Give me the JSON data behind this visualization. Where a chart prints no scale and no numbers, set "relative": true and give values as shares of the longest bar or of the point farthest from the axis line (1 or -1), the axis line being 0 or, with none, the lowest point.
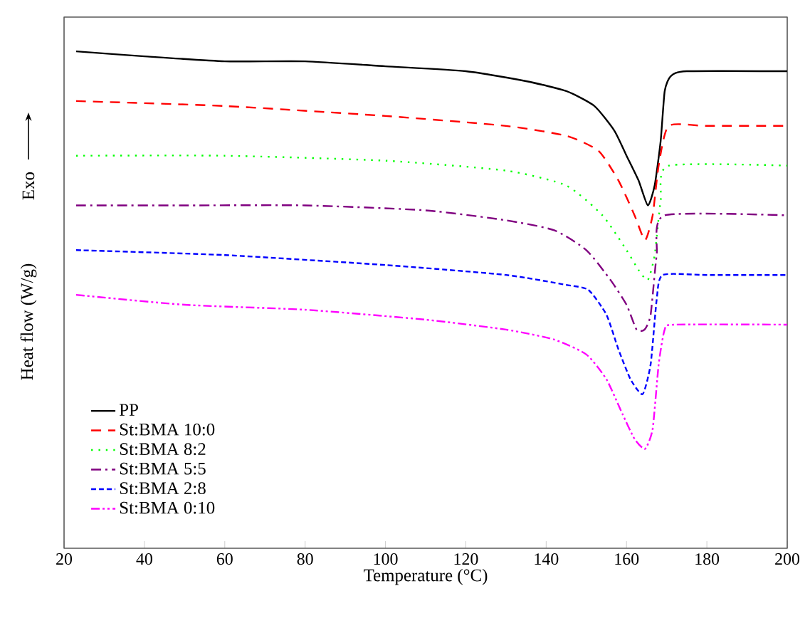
{
  "chart_data": {
    "type": "line",
    "xlabel": "Temperature (°C)",
    "ylabel": "Heat flow (W/g)",
    "annotations": [
      "Exo"
    ],
    "relative": true,
    "xlim": [
      20,
      200
    ],
    "xticks": [
      20,
      40,
      60,
      80,
      100,
      120,
      140,
      160,
      180,
      200
    ],
    "grid": false,
    "legend": "bottom left",
    "marker": "none",
    "series": [
      {
        "name": "PP",
        "color": "#000000",
        "line_style": "solid",
        "x": [
          23,
          40,
          60,
          80,
          100,
          120,
          135,
          145,
          152,
          157,
          160,
          163,
          165.3,
          167,
          168.5,
          169.5,
          171,
          175,
          200
        ],
        "values": [
          1.0,
          0.99,
          0.98,
          0.98,
          0.97,
          0.96,
          0.94,
          0.92,
          0.89,
          0.84,
          0.79,
          0.74,
          0.69,
          0.73,
          0.82,
          0.92,
          0.95,
          0.96,
          0.96
        ]
      },
      {
        "name": "St:BMA 10:0",
        "color": "#ff0000",
        "line_style": "dashed",
        "x": [
          23,
          60,
          100,
          130,
          145,
          153,
          158,
          162,
          164.6,
          166.5,
          168,
          170.5,
          180,
          200
        ],
        "values": [
          0.9,
          0.89,
          0.87,
          0.85,
          0.83,
          0.8,
          0.74,
          0.67,
          0.62,
          0.67,
          0.77,
          0.85,
          0.85,
          0.85
        ]
      },
      {
        "name": "St:BMA 8:2",
        "color": "#00ff00",
        "line_style": "dotted",
        "x": [
          23,
          60,
          100,
          130,
          145,
          154,
          160,
          163,
          165.3,
          167,
          168.5,
          170.5,
          200
        ],
        "values": [
          0.79,
          0.79,
          0.78,
          0.76,
          0.73,
          0.67,
          0.6,
          0.56,
          0.54,
          0.59,
          0.7,
          0.77,
          0.77
        ]
      },
      {
        "name": "St:BMA 5:5",
        "color": "#800080",
        "line_style": "dashdot",
        "x": [
          23,
          50,
          80,
          110,
          130,
          142,
          150,
          156,
          160,
          162.5,
          164.5,
          166,
          167.5,
          169.5,
          200
        ],
        "values": [
          0.69,
          0.69,
          0.69,
          0.68,
          0.66,
          0.64,
          0.6,
          0.54,
          0.49,
          0.44,
          0.44,
          0.47,
          0.59,
          0.67,
          0.67
        ]
      },
      {
        "name": "St:BMA 2:8",
        "color": "#0000ff",
        "line_style": "shortdashed",
        "x": [
          23,
          60,
          100,
          130,
          145,
          150.5,
          155,
          158,
          161,
          164,
          166,
          167.5,
          169,
          180,
          200
        ],
        "values": [
          0.6,
          0.59,
          0.57,
          0.55,
          0.53,
          0.52,
          0.47,
          0.4,
          0.34,
          0.31,
          0.37,
          0.5,
          0.55,
          0.55,
          0.55
        ]
      },
      {
        "name": "St:BMA 0:10",
        "color": "#ff00ff",
        "line_style": "dashdotdot",
        "x": [
          23,
          50,
          80,
          110,
          130,
          142,
          150,
          155,
          159,
          162,
          164.6,
          166.5,
          168,
          169.5,
          172,
          200
        ],
        "values": [
          0.51,
          0.49,
          0.48,
          0.46,
          0.44,
          0.42,
          0.39,
          0.34,
          0.27,
          0.22,
          0.2,
          0.24,
          0.37,
          0.44,
          0.45,
          0.45
        ]
      }
    ]
  }
}
